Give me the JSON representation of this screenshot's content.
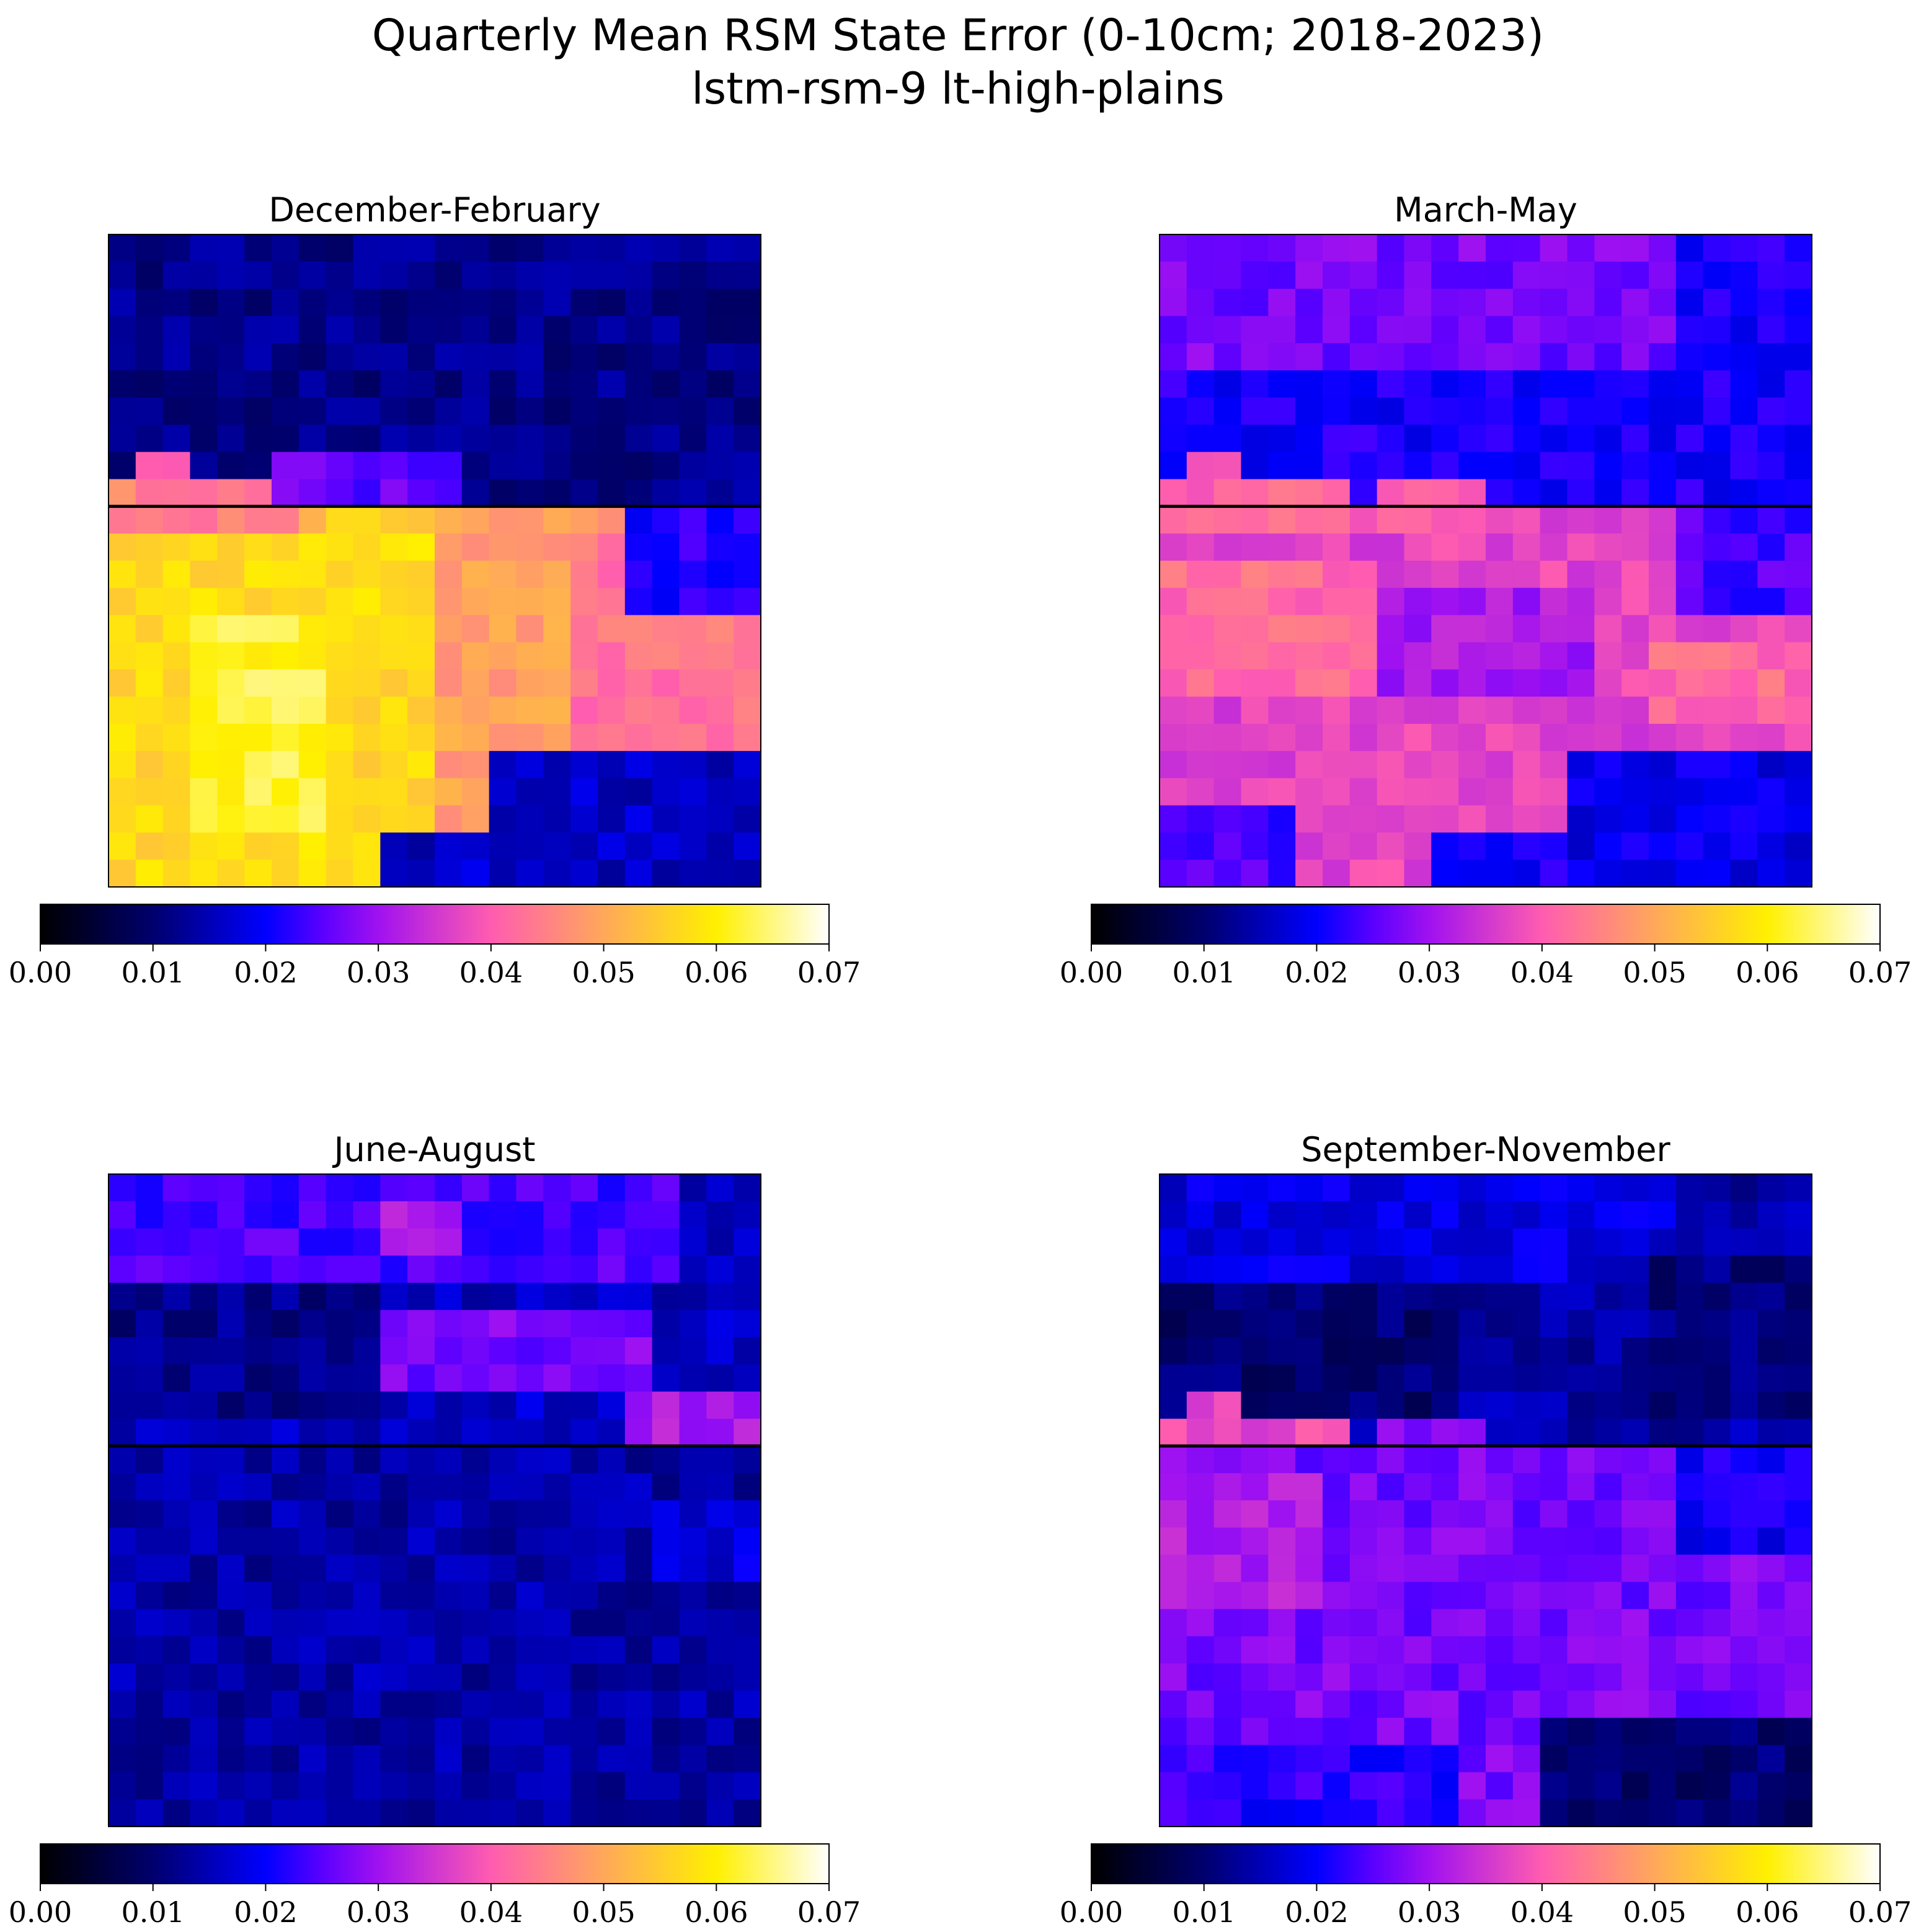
{
  "title_lines": [
    "Quarterly Mean RSM State Error (0-10cm; 2018-2023)",
    "lstm-rsm-9 lt-high-plains"
  ],
  "chart_data": {
    "type": "heatmap",
    "colormap": "gnuplot2",
    "colorbar": {
      "range": [
        0.0,
        0.07
      ],
      "ticks": [
        "0.00",
        "0.01",
        "0.02",
        "0.03",
        "0.04",
        "0.05",
        "0.06",
        "0.07"
      ]
    },
    "colorbar_stops": [
      {
        "v": 0.0,
        "color": "#000000"
      },
      {
        "v": 0.01,
        "color": "#00006d"
      },
      {
        "v": 0.02,
        "color": "#0000ff"
      },
      {
        "v": 0.025,
        "color": "#5a00ff"
      },
      {
        "v": 0.03,
        "color": "#a011f0"
      },
      {
        "v": 0.04,
        "color": "#ff5cb0"
      },
      {
        "v": 0.05,
        "color": "#ffa85a"
      },
      {
        "v": 0.06,
        "color": "#fff000"
      },
      {
        "v": 0.07,
        "color": "#ffffff"
      }
    ],
    "grid_size": {
      "rows": 24,
      "cols": 24
    },
    "horizontal_line_after_row": 10,
    "panels": [
      {
        "title": "December-February",
        "field": {
          "base_north": 0.012,
          "base_south": 0.049,
          "features": [
            {
              "r0": 9,
              "r1": 10,
              "c0": 0,
              "c1": 6,
              "v": 0.045
            },
            {
              "r0": 9,
              "r1": 10,
              "c0": 8,
              "c1": 11,
              "v": 0.055
            },
            {
              "r0": 8,
              "r1": 8,
              "c0": 1,
              "c1": 2,
              "v": 0.042
            },
            {
              "r0": 8,
              "r1": 9,
              "c0": 6,
              "c1": 12,
              "v": 0.026
            },
            {
              "r0": 11,
              "r1": 23,
              "c0": 0,
              "c1": 11,
              "v": 0.057
            },
            {
              "r0": 14,
              "r1": 21,
              "c0": 3,
              "c1": 7,
              "v": 0.062
            },
            {
              "r0": 11,
              "r1": 23,
              "c0": 17,
              "c1": 23,
              "v": 0.043
            },
            {
              "r0": 10,
              "r1": 13,
              "c0": 19,
              "c1": 23,
              "v": 0.022
            },
            {
              "r0": 19,
              "r1": 23,
              "c0": 14,
              "c1": 23,
              "v": 0.016
            },
            {
              "r0": 22,
              "r1": 23,
              "c0": 10,
              "c1": 13,
              "v": 0.016
            }
          ]
        }
      },
      {
        "title": "March-May",
        "field": {
          "base_north": 0.027,
          "base_south": 0.037,
          "features": [
            {
              "r0": 5,
              "r1": 9,
              "c0": 0,
              "c1": 23,
              "v": 0.021
            },
            {
              "r0": 9,
              "r1": 10,
              "c0": 0,
              "c1": 6,
              "v": 0.041
            },
            {
              "r0": 9,
              "r1": 10,
              "c0": 8,
              "c1": 11,
              "v": 0.041
            },
            {
              "r0": 8,
              "r1": 8,
              "c0": 1,
              "c1": 2,
              "v": 0.041
            },
            {
              "r0": 0,
              "r1": 4,
              "c0": 19,
              "c1": 23,
              "v": 0.021
            },
            {
              "r0": 12,
              "r1": 16,
              "c0": 0,
              "c1": 7,
              "v": 0.042
            },
            {
              "r0": 13,
              "r1": 16,
              "c0": 8,
              "c1": 15,
              "v": 0.031
            },
            {
              "r0": 15,
              "r1": 17,
              "c0": 18,
              "c1": 23,
              "v": 0.042
            },
            {
              "r0": 10,
              "r1": 13,
              "c0": 19,
              "c1": 23,
              "v": 0.024
            },
            {
              "r0": 19,
              "r1": 23,
              "c0": 15,
              "c1": 23,
              "v": 0.019
            },
            {
              "r0": 21,
              "r1": 23,
              "c0": 0,
              "c1": 4,
              "v": 0.024
            },
            {
              "r0": 22,
              "r1": 23,
              "c0": 10,
              "c1": 14,
              "v": 0.021
            }
          ]
        }
      },
      {
        "title": "June-August",
        "field": {
          "base_north": 0.016,
          "base_south": 0.014,
          "features": [
            {
              "r0": 0,
              "r1": 3,
              "c0": 0,
              "c1": 20,
              "v": 0.024
            },
            {
              "r0": 1,
              "r1": 2,
              "c0": 10,
              "c1": 12,
              "v": 0.031
            },
            {
              "r0": 5,
              "r1": 7,
              "c0": 10,
              "c1": 19,
              "v": 0.027
            },
            {
              "r0": 8,
              "r1": 9,
              "c0": 19,
              "c1": 23,
              "v": 0.031
            },
            {
              "r0": 4,
              "r1": 8,
              "c0": 0,
              "c1": 9,
              "v": 0.012
            },
            {
              "r0": 11,
              "r1": 23,
              "c0": 0,
              "c1": 23,
              "v": 0.014
            },
            {
              "r0": 12,
              "r1": 14,
              "c0": 20,
              "c1": 23,
              "v": 0.018
            }
          ]
        }
      },
      {
        "title": "September-November",
        "field": {
          "base_north": 0.014,
          "base_south": 0.027,
          "features": [
            {
              "r0": 0,
              "r1": 3,
              "c0": 0,
              "c1": 18,
              "v": 0.018
            },
            {
              "r0": 4,
              "r1": 8,
              "c0": 0,
              "c1": 10,
              "v": 0.01
            },
            {
              "r0": 3,
              "r1": 8,
              "c0": 18,
              "c1": 23,
              "v": 0.011
            },
            {
              "r0": 9,
              "r1": 9,
              "c0": 0,
              "c1": 6,
              "v": 0.038
            },
            {
              "r0": 8,
              "r1": 8,
              "c0": 1,
              "c1": 2,
              "v": 0.037
            },
            {
              "r0": 9,
              "r1": 9,
              "c0": 8,
              "c1": 11,
              "v": 0.028
            },
            {
              "r0": 11,
              "r1": 15,
              "c0": 0,
              "c1": 5,
              "v": 0.032
            },
            {
              "r0": 10,
              "r1": 13,
              "c0": 19,
              "c1": 23,
              "v": 0.02
            },
            {
              "r0": 20,
              "r1": 23,
              "c0": 14,
              "c1": 23,
              "v": 0.01
            },
            {
              "r0": 21,
              "r1": 23,
              "c0": 0,
              "c1": 10,
              "v": 0.022
            }
          ]
        }
      }
    ]
  }
}
